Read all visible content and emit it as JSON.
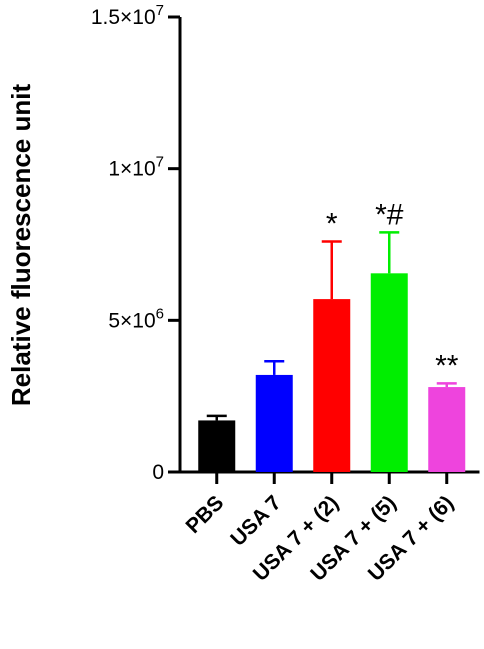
{
  "chart_data": {
    "type": "bar",
    "title": "",
    "xlabel": "",
    "ylabel": "Relative fluorescence unit",
    "ylim": [
      0,
      15000000
    ],
    "yticks": [
      {
        "value": 0,
        "mantissa": "0",
        "exponent": ""
      },
      {
        "value": 5000000,
        "mantissa": "5×10",
        "exponent": "6"
      },
      {
        "value": 10000000,
        "mantissa": "1×10",
        "exponent": "7"
      },
      {
        "value": 15000000,
        "mantissa": "1.5×10",
        "exponent": "7"
      }
    ],
    "categories": [
      "PBS",
      "USA 7",
      "USA 7 + (2)",
      "USA 7 + (5)",
      "USA 7 + (6)"
    ],
    "values": [
      1700000,
      3200000,
      5700000,
      6550000,
      2800000
    ],
    "errors": [
      150000,
      450000,
      1900000,
      1350000,
      120000
    ],
    "colors": [
      "#000000",
      "#0000ff",
      "#ff0000",
      "#00ee00",
      "#ee44dd"
    ],
    "annotations": [
      "",
      "",
      "*",
      "*#",
      "**"
    ],
    "grid": false,
    "legend": "none"
  }
}
